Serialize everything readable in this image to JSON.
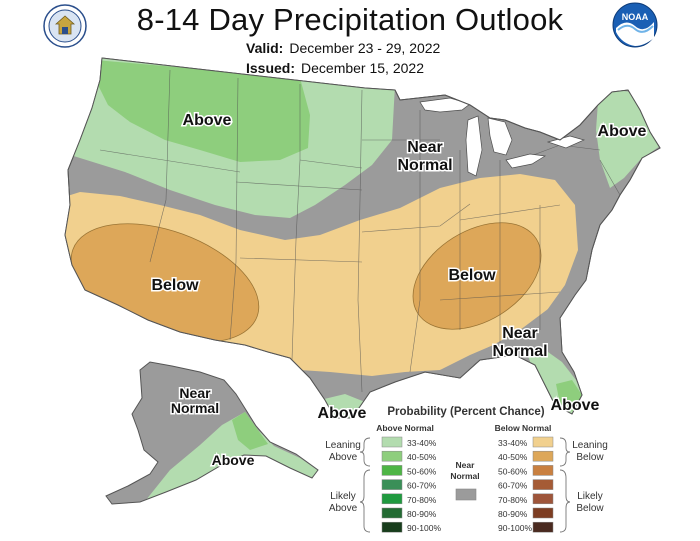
{
  "header": {
    "title": "8-14 Day Precipitation Outlook",
    "valid_label": "Valid:",
    "valid_value": "December 23 - 29, 2022",
    "issued_label": "Issued:",
    "issued_value": "December 15, 2022",
    "left_logo_icon": "department-of-commerce-seal-icon",
    "right_logo": {
      "icon": "noaa-logo-icon",
      "text": "NOAA"
    }
  },
  "map_labels": {
    "above_nw": "Above",
    "above_ne": "Above",
    "above_tx": "Above",
    "above_fl": "Above",
    "above_ak": "Above",
    "near_normal_north": [
      "Near",
      "Normal"
    ],
    "near_normal_se": [
      "Near",
      "Normal"
    ],
    "near_normal_ak": [
      "Near",
      "Normal"
    ],
    "below_sw": "Below",
    "below_tn": "Below"
  },
  "legend": {
    "title": "Probability (Percent Chance)",
    "above_header": "Above Normal",
    "below_header": "Below Normal",
    "near_label": [
      "Near",
      "Normal"
    ],
    "leaning_above": [
      "Leaning",
      "Above"
    ],
    "likely_above": [
      "Likely",
      "Above"
    ],
    "leaning_below": [
      "Leaning",
      "Below"
    ],
    "likely_below": [
      "Likely",
      "Below"
    ],
    "ranges": [
      "33-40%",
      "40-50%",
      "50-60%",
      "60-70%",
      "70-80%",
      "80-90%",
      "90-100%"
    ],
    "above_colors": [
      "#b3dcaf",
      "#8ece7d",
      "#4eb545",
      "#3a8f58",
      "#1f9a3f",
      "#236b33",
      "#183d1c"
    ],
    "below_colors": [
      "#f1d08e",
      "#dda759",
      "#c98040",
      "#a55b35",
      "#9e553a",
      "#7d3d22",
      "#4a2a20"
    ],
    "near_color": "#9b9b9b"
  },
  "colors": {
    "above_light": "#b3dcaf",
    "above_mid": "#8ece7d",
    "near_normal": "#9b9b9b",
    "below_light": "#f1d08e",
    "below_mid": "#dda759",
    "lakes": "#ffffff"
  }
}
